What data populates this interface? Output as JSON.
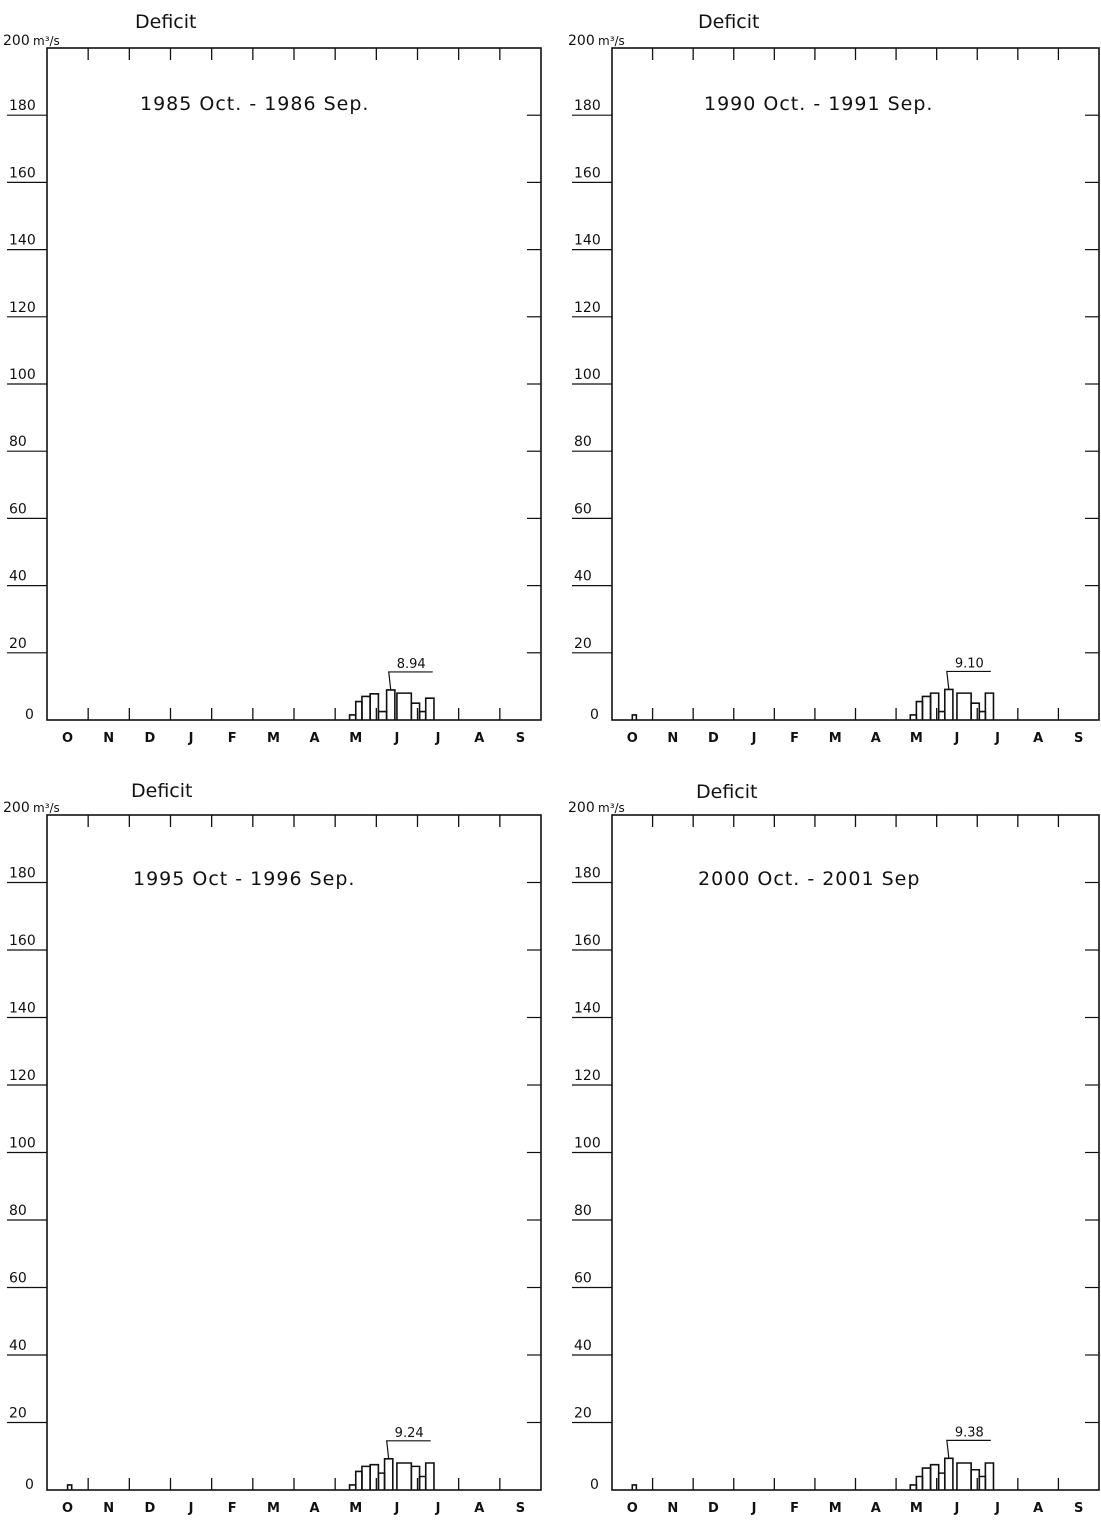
{
  "chart_data": [
    {
      "type": "step",
      "title": "Deficit",
      "period": "1985 Oct. - 1986 Sep.",
      "unit": "m³/s",
      "ylim": [
        0,
        200
      ],
      "yticks": [
        "0",
        "20",
        "40",
        "60",
        "80",
        "100",
        "120",
        "140",
        "160",
        "180",
        "200"
      ],
      "month_labels": [
        "O",
        "N",
        "D",
        "J",
        "F",
        "M",
        "A",
        "M",
        "J",
        "J",
        "A",
        "S"
      ],
      "steps": [
        {
          "start": 7.35,
          "end": 7.5,
          "value": 1.5
        },
        {
          "start": 7.5,
          "end": 7.65,
          "value": 5.5
        },
        {
          "start": 7.65,
          "end": 7.85,
          "value": 7
        },
        {
          "start": 7.85,
          "end": 8.05,
          "value": 7.8
        },
        {
          "start": 8.05,
          "end": 8.25,
          "value": 2.5
        },
        {
          "start": 8.25,
          "end": 8.45,
          "value": 8.94
        },
        {
          "start": 8.5,
          "end": 8.85,
          "value": 8
        },
        {
          "start": 8.85,
          "end": 9.05,
          "value": 5
        },
        {
          "start": 9.05,
          "end": 9.2,
          "value": 2.5
        },
        {
          "start": 9.2,
          "end": 9.4,
          "value": 6.5
        }
      ],
      "peak": {
        "x": 8.35,
        "value": 8.94,
        "label": "8.94"
      },
      "grid": false
    },
    {
      "type": "step",
      "title": "Deficit",
      "period": "1990 Oct. - 1991 Sep.",
      "unit": "m³/s",
      "ylim": [
        0,
        200
      ],
      "yticks": [
        "0",
        "20",
        "40",
        "60",
        "80",
        "100",
        "120",
        "140",
        "160",
        "180",
        "200"
      ],
      "month_labels": [
        "O",
        "N",
        "D",
        "J",
        "F",
        "M",
        "A",
        "M",
        "J",
        "J",
        "A",
        "S"
      ],
      "steps": [
        {
          "start": 0.5,
          "end": 0.6,
          "value": 1.5
        },
        {
          "start": 7.35,
          "end": 7.5,
          "value": 1.5
        },
        {
          "start": 7.5,
          "end": 7.65,
          "value": 5.5
        },
        {
          "start": 7.65,
          "end": 7.85,
          "value": 7
        },
        {
          "start": 7.85,
          "end": 8.05,
          "value": 8
        },
        {
          "start": 8.05,
          "end": 8.2,
          "value": 2.5
        },
        {
          "start": 8.2,
          "end": 8.4,
          "value": 9.1
        },
        {
          "start": 8.5,
          "end": 8.85,
          "value": 8
        },
        {
          "start": 8.85,
          "end": 9.05,
          "value": 5
        },
        {
          "start": 9.05,
          "end": 9.2,
          "value": 2.5
        },
        {
          "start": 9.2,
          "end": 9.4,
          "value": 8
        }
      ],
      "peak": {
        "x": 8.3,
        "value": 9.1,
        "label": "9.10"
      },
      "grid": false
    },
    {
      "type": "step",
      "title": "Deficit",
      "period": "1995 Oct - 1996 Sep.",
      "unit": "m³/s",
      "ylim": [
        0,
        200
      ],
      "yticks": [
        "0",
        "20",
        "40",
        "60",
        "80",
        "100",
        "120",
        "140",
        "160",
        "180",
        "200"
      ],
      "month_labels": [
        "O",
        "N",
        "D",
        "J",
        "F",
        "M",
        "A",
        "M",
        "J",
        "J",
        "A",
        "S"
      ],
      "steps": [
        {
          "start": 0.5,
          "end": 0.6,
          "value": 1.5
        },
        {
          "start": 7.35,
          "end": 7.5,
          "value": 1.5
        },
        {
          "start": 7.5,
          "end": 7.65,
          "value": 5.5
        },
        {
          "start": 7.65,
          "end": 7.85,
          "value": 7
        },
        {
          "start": 7.85,
          "end": 8.05,
          "value": 7.5
        },
        {
          "start": 8.05,
          "end": 8.2,
          "value": 5
        },
        {
          "start": 8.2,
          "end": 8.4,
          "value": 9.24
        },
        {
          "start": 8.5,
          "end": 8.85,
          "value": 8
        },
        {
          "start": 8.85,
          "end": 9.05,
          "value": 7
        },
        {
          "start": 9.05,
          "end": 9.2,
          "value": 4
        },
        {
          "start": 9.2,
          "end": 9.4,
          "value": 8
        }
      ],
      "peak": {
        "x": 8.3,
        "value": 9.24,
        "label": "9.24"
      },
      "grid": false
    },
    {
      "type": "step",
      "title": "Deficit",
      "period": "2000 Oct. - 2001 Sep",
      "unit": "m³/s",
      "ylim": [
        0,
        200
      ],
      "yticks": [
        "0",
        "20",
        "40",
        "60",
        "80",
        "100",
        "120",
        "140",
        "160",
        "180",
        "200"
      ],
      "month_labels": [
        "O",
        "N",
        "D",
        "J",
        "F",
        "M",
        "A",
        "M",
        "J",
        "J",
        "A",
        "S"
      ],
      "steps": [
        {
          "start": 0.5,
          "end": 0.6,
          "value": 1.5
        },
        {
          "start": 7.35,
          "end": 7.5,
          "value": 1.5
        },
        {
          "start": 7.5,
          "end": 7.65,
          "value": 4
        },
        {
          "start": 7.65,
          "end": 7.85,
          "value": 6.5
        },
        {
          "start": 7.85,
          "end": 8.05,
          "value": 7.5
        },
        {
          "start": 8.05,
          "end": 8.2,
          "value": 5
        },
        {
          "start": 8.2,
          "end": 8.4,
          "value": 9.38
        },
        {
          "start": 8.5,
          "end": 8.85,
          "value": 8
        },
        {
          "start": 8.85,
          "end": 9.05,
          "value": 6
        },
        {
          "start": 9.05,
          "end": 9.2,
          "value": 4
        },
        {
          "start": 9.2,
          "end": 9.4,
          "value": 8
        }
      ],
      "peak": {
        "x": 8.3,
        "value": 9.38,
        "label": "9.38"
      },
      "grid": false
    }
  ]
}
